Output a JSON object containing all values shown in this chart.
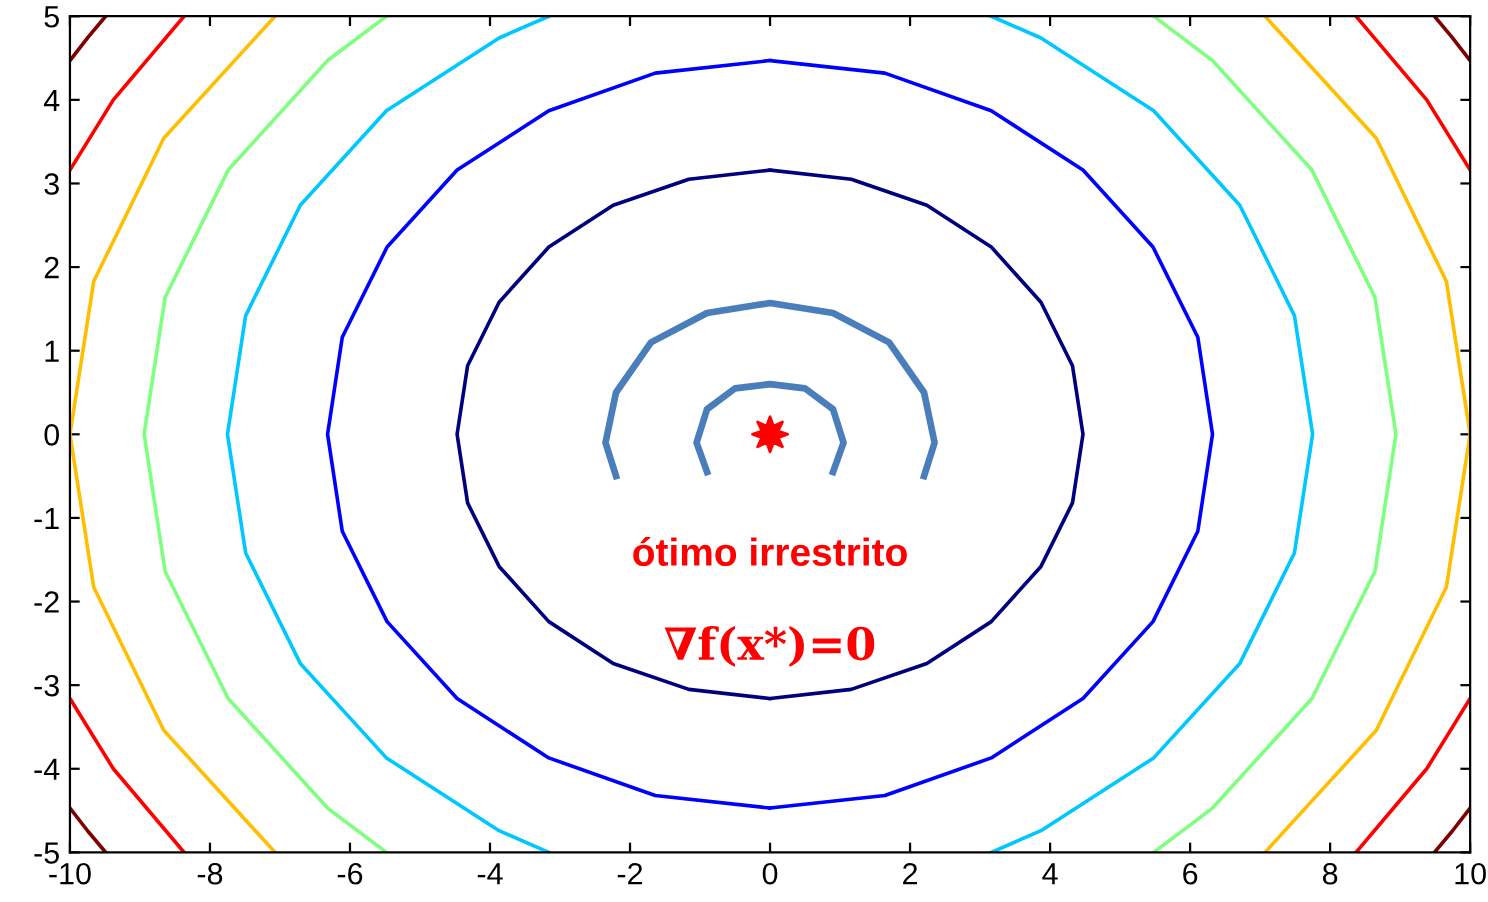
{
  "chart_data": {
    "type": "line",
    "xlim": [
      -10,
      10
    ],
    "ylim": [
      -5,
      5
    ],
    "xticks": [
      -10,
      -8,
      -6,
      -4,
      -2,
      0,
      2,
      4,
      6,
      8,
      10
    ],
    "yticks": [
      -5,
      -4,
      -3,
      -2,
      -1,
      0,
      1,
      2,
      3,
      4,
      5
    ],
    "grid": false,
    "legend": false,
    "series": [
      {
        "color": "#00007f",
        "x": [
          0,
          1.16,
          2.24,
          3.16,
          3.87,
          4.32,
          4.47,
          4.32,
          3.87,
          3.16,
          2.24,
          1.16,
          0,
          null,
          0,
          -1.16,
          -2.24,
          -3.16,
          -3.87,
          -4.32,
          -4.47,
          -4.32,
          -3.87,
          -3.16,
          -2.24,
          -1.16,
          0
        ],
        "values": [
          3.16,
          3.05,
          2.74,
          2.24,
          1.58,
          0.82,
          0,
          -0.82,
          -1.58,
          -2.24,
          -2.74,
          -3.05,
          -3.16,
          null,
          3.16,
          3.05,
          2.74,
          2.24,
          1.58,
          0.82,
          0,
          -0.82,
          -1.58,
          -2.24,
          -2.74,
          -3.05,
          -3.16
        ]
      },
      {
        "color": "#0000ff",
        "x": [
          0,
          1.64,
          3.16,
          4.47,
          5.47,
          6.11,
          6.32,
          6.11,
          5.47,
          4.47,
          3.16,
          1.64,
          0,
          null,
          0,
          -1.64,
          -3.16,
          -4.47,
          -5.47,
          -6.11,
          -6.32,
          -6.11,
          -5.47,
          -4.47,
          -3.16,
          -1.64,
          0
        ],
        "values": [
          4.47,
          4.32,
          3.87,
          3.16,
          2.24,
          1.16,
          0,
          -1.16,
          -2.24,
          -3.16,
          -3.87,
          -4.32,
          -4.47,
          null,
          4.47,
          4.32,
          3.87,
          3.16,
          2.24,
          1.16,
          0,
          -1.16,
          -2.24,
          -3.16,
          -3.87,
          -4.32,
          -4.47
        ]
      },
      {
        "color": "#00c8ff",
        "x": [
          3.16,
          3.87,
          5.48,
          6.71,
          7.49,
          7.75,
          7.49,
          6.71,
          5.48,
          3.87,
          3.16,
          null,
          -3.16,
          -3.87,
          -5.48,
          -6.71,
          -7.49,
          -7.75,
          -7.49,
          -6.71,
          -5.48,
          -3.87,
          -3.16
        ],
        "values": [
          5,
          4.74,
          3.87,
          2.74,
          1.42,
          0,
          -1.42,
          -2.74,
          -3.87,
          -4.74,
          -5,
          null,
          5,
          4.74,
          3.87,
          2.74,
          1.42,
          0,
          -1.42,
          -2.74,
          -3.87,
          -4.74,
          -5
        ]
      },
      {
        "color": "#7fff7f",
        "x": [
          5.48,
          6.32,
          7.74,
          8.64,
          8.94,
          8.64,
          7.74,
          6.32,
          5.48,
          null,
          -5.48,
          -6.32,
          -7.74,
          -8.64,
          -8.94,
          -8.64,
          -7.74,
          -6.32,
          -5.48
        ],
        "values": [
          5,
          4.47,
          3.16,
          1.64,
          0,
          -1.64,
          -3.16,
          -4.47,
          -5,
          null,
          5,
          4.47,
          3.16,
          1.64,
          0,
          -1.64,
          -3.16,
          -4.47,
          -5
        ]
      },
      {
        "color": "#ffbf00",
        "x": [
          7.07,
          8.66,
          9.66,
          10,
          9.66,
          8.66,
          7.07,
          null,
          -7.07,
          -8.66,
          -9.66,
          -10,
          -9.66,
          -8.66,
          -7.07
        ],
        "values": [
          5,
          3.54,
          1.83,
          0,
          -1.83,
          -3.54,
          -5,
          null,
          5,
          3.54,
          1.83,
          0,
          -1.83,
          -3.54,
          -5
        ]
      },
      {
        "color": "#ff0000",
        "x": [
          8.37,
          9.38,
          10,
          null,
          10,
          9.38,
          8.37,
          null,
          -8.37,
          -9.38,
          -10,
          null,
          -10,
          -9.38,
          -8.37
        ],
        "values": [
          5,
          4,
          3.16,
          null,
          -3.16,
          -4,
          -5,
          null,
          5,
          4,
          3.16,
          null,
          -3.16,
          -4,
          -5
        ]
      },
      {
        "color": "#7f0000",
        "x": [
          9.49,
          9.74,
          10,
          null,
          10,
          9.74,
          9.49,
          null,
          -9.49,
          -9.74,
          -10,
          null,
          -10,
          -9.74,
          -9.49
        ],
        "values": [
          5,
          4.75,
          4.47,
          null,
          -4.47,
          -4.75,
          -5,
          null,
          5,
          4.75,
          4.47,
          null,
          -4.47,
          -4.75,
          -5
        ]
      },
      {
        "color": "#4a7ebb",
        "x": [
          -2.2,
          -2.35,
          -2.2,
          -1.7,
          -0.9,
          0,
          0.9,
          1.7,
          2.2,
          2.35,
          2.2
        ],
        "values": [
          -0.5,
          -0.1,
          0.5,
          1.1,
          1.45,
          1.57,
          1.45,
          1.1,
          0.5,
          -0.1,
          -0.5
        ]
      },
      {
        "color": "#4a7ebb",
        "x": [
          -0.9,
          -1.05,
          -0.9,
          -0.5,
          0,
          0.5,
          0.9,
          1.05,
          0.9
        ],
        "values": [
          -0.45,
          -0.1,
          0.3,
          0.55,
          0.6,
          0.55,
          0.3,
          -0.1,
          -0.45
        ]
      },
      {
        "type": "scatter",
        "marker": "star",
        "color": "#ff0000",
        "x": [
          0
        ],
        "values": [
          0
        ]
      }
    ],
    "annotations": [
      "ótimo irrestrito",
      "∇f(x*)=0"
    ]
  }
}
